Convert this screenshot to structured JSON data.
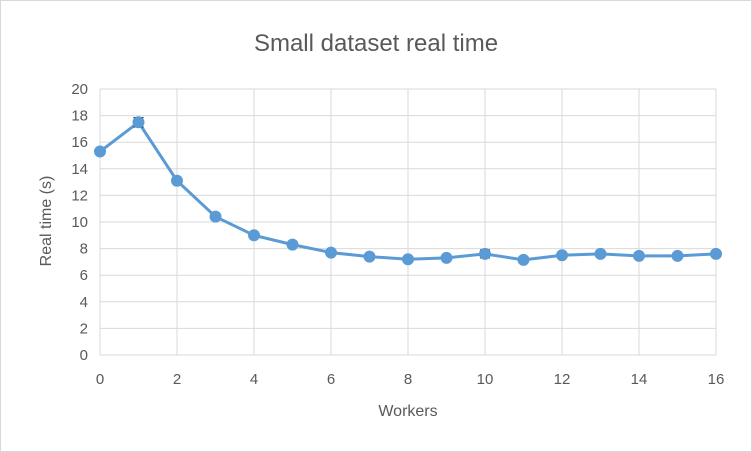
{
  "chart_data": {
    "type": "line",
    "title": "Small dataset real time",
    "xlabel": "Workers",
    "ylabel": "Real time (s)",
    "xlim": [
      0,
      16
    ],
    "ylim": [
      0,
      20
    ],
    "x_ticks": [
      "0",
      "2",
      "4",
      "6",
      "8",
      "10",
      "12",
      "14",
      "16"
    ],
    "y_ticks": [
      "0",
      "2",
      "4",
      "6",
      "8",
      "10",
      "12",
      "14",
      "16",
      "18",
      "20"
    ],
    "grid": true,
    "legend": "none",
    "line_color": "#5b9bd5",
    "series": [
      {
        "x": [
          0,
          1,
          2,
          3,
          4,
          5,
          6,
          7,
          8,
          9,
          10,
          11,
          12,
          13,
          14,
          15,
          16
        ],
        "values": [
          15.3,
          17.5,
          13.1,
          10.4,
          9.0,
          8.3,
          7.7,
          7.4,
          7.2,
          7.3,
          7.6,
          7.15,
          7.5,
          7.6,
          7.45,
          7.45,
          7.6
        ],
        "error": [
          0.1,
          0.35,
          0.1,
          0.15,
          0.1,
          0.1,
          0.05,
          0.05,
          0.05,
          0.05,
          0.3,
          0.05,
          0.05,
          0.05,
          0.05,
          0.05,
          0.05
        ]
      }
    ]
  }
}
